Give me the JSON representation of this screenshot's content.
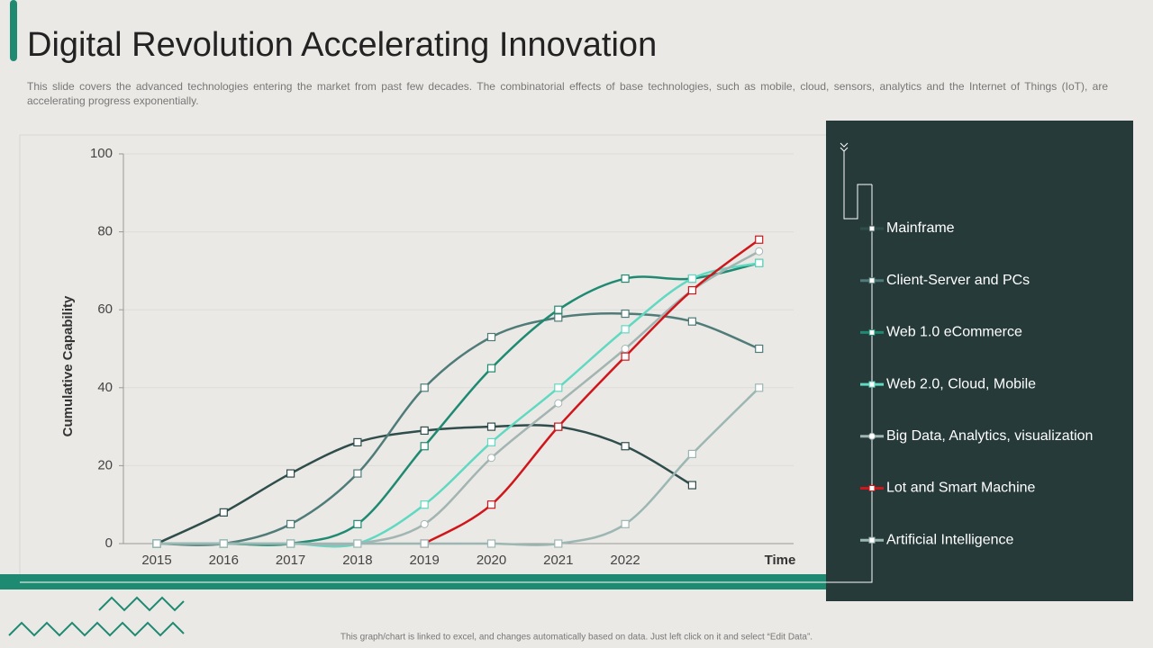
{
  "title": "Digital Revolution Accelerating Innovation",
  "description": "This slide covers the advanced technologies entering the market from past few decades. The combinatorial effects of base technologies, such as mobile, cloud, sensors, analytics and the Internet of Things (IoT), are accelerating progress exponentially.",
  "footnote": "This graph/chart is linked to excel, and changes automatically based on data. Just left click on it and select “Edit Data”.",
  "chart_data": {
    "type": "line",
    "x_label": "Time",
    "y_label": "Cumulative Capability",
    "categories": [
      "2015",
      "2016",
      "2017",
      "2018",
      "2019",
      "2020",
      "2021",
      "2022",
      null,
      null
    ],
    "ylim": [
      0,
      100
    ],
    "yticks": [
      0,
      20,
      40,
      60,
      80,
      100
    ],
    "grid": true,
    "series": [
      {
        "name": "Mainframe",
        "color": "#2f4d4b",
        "marker": "square",
        "values": [
          0,
          8,
          18,
          26,
          29,
          30,
          30,
          25,
          15,
          null
        ]
      },
      {
        "name": "Client-Server and PCs",
        "color": "#4f7b78",
        "marker": "square",
        "values": [
          0,
          0,
          5,
          18,
          40,
          53,
          58,
          59,
          57,
          50
        ]
      },
      {
        "name": "Web 1.0 eCommerce",
        "color": "#1f8a72",
        "marker": "square",
        "values": [
          0,
          0,
          0,
          5,
          25,
          45,
          60,
          68,
          68,
          72
        ]
      },
      {
        "name": "Web 2.0, Cloud, Mobile",
        "color": "#5fd9c2",
        "marker": "square",
        "values": [
          0,
          0,
          0,
          0,
          10,
          26,
          40,
          55,
          68,
          72
        ]
      },
      {
        "name": "Big Data, Analytics, visualization",
        "color": "#a3b5b2",
        "marker": "circle",
        "values": [
          0,
          0,
          0,
          0,
          5,
          22,
          36,
          50,
          65,
          75
        ]
      },
      {
        "name": "Lot and Smart Machine",
        "color": "#d0161b",
        "marker": "square",
        "values": [
          null,
          null,
          null,
          null,
          0,
          10,
          30,
          48,
          65,
          78
        ]
      },
      {
        "name": "Artificial Intelligence",
        "color": "#9cb7b3",
        "marker": "square",
        "values": [
          0,
          0,
          0,
          0,
          0,
          0,
          0,
          5,
          23,
          40
        ]
      }
    ]
  }
}
